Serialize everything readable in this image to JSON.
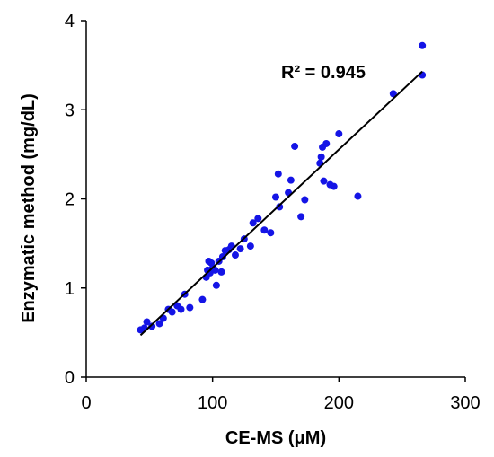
{
  "chart_data": {
    "type": "scatter",
    "title": "",
    "xlabel": "CE-MS (μM)",
    "ylabel": "Enzymatic method (mg/dL)",
    "xlim": [
      0,
      300
    ],
    "ylim": [
      0,
      4
    ],
    "xticks": [
      0,
      100,
      200,
      300
    ],
    "yticks": [
      0,
      1,
      2,
      3,
      4
    ],
    "xtick_labels": [
      "0",
      "100",
      "200",
      "300"
    ],
    "ytick_labels": [
      "0",
      "1",
      "2",
      "3",
      "4"
    ],
    "grid": false,
    "legend": "none",
    "annotation": "R² = 0.945",
    "point_color": "#1414e6",
    "line_color": "#000000",
    "trendline": {
      "x": [
        43,
        266
      ],
      "y": [
        0.47,
        3.43
      ]
    },
    "series": [
      {
        "x": [
          43,
          46,
          48,
          52,
          58,
          61,
          65,
          68,
          72,
          75,
          78,
          82,
          92,
          95,
          96,
          97,
          98,
          99,
          100,
          102,
          103,
          105,
          107,
          108,
          110,
          113,
          115,
          118,
          122,
          125,
          130,
          132,
          136,
          141,
          146,
          150,
          152,
          153,
          160,
          162,
          165,
          170,
          173,
          185,
          186,
          187,
          188,
          190,
          193,
          196,
          200,
          215,
          243,
          266,
          266
        ],
        "y": [
          0.53,
          0.55,
          0.62,
          0.57,
          0.6,
          0.66,
          0.76,
          0.73,
          0.8,
          0.76,
          0.93,
          0.78,
          0.87,
          1.12,
          1.2,
          1.3,
          1.17,
          1.28,
          1.22,
          1.2,
          1.03,
          1.3,
          1.18,
          1.35,
          1.42,
          1.43,
          1.47,
          1.37,
          1.44,
          1.55,
          1.47,
          1.73,
          1.78,
          1.65,
          1.62,
          2.02,
          2.28,
          1.91,
          2.07,
          2.21,
          2.59,
          1.8,
          1.99,
          2.4,
          2.47,
          2.58,
          2.2,
          2.62,
          2.16,
          2.14,
          2.73,
          2.03,
          3.18,
          3.72,
          3.39
        ]
      }
    ]
  }
}
